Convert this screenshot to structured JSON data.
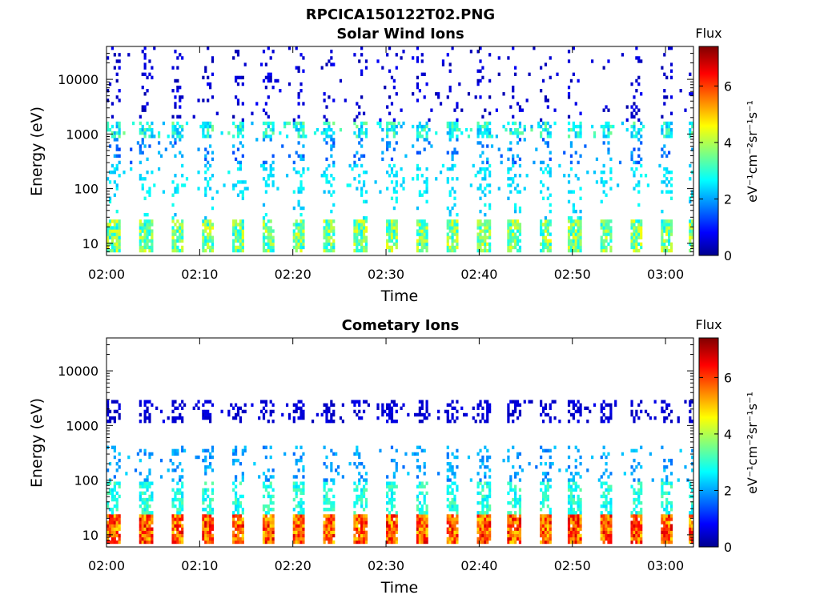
{
  "figure_title": "RPCICA150122T02.PNG",
  "chart_data": [
    {
      "type": "heatmap",
      "title": "Solar Wind Ions",
      "xlabel": "Time",
      "ylabel": "Energy (eV)",
      "x_ticks": [
        "02:00",
        "02:10",
        "02:20",
        "02:30",
        "02:40",
        "02:50",
        "03:00"
      ],
      "x_tick_minutes": [
        0,
        10,
        20,
        30,
        40,
        50,
        60
      ],
      "xlim_minutes": [
        0,
        63
      ],
      "y_scale": "log",
      "ylim": [
        6,
        40000
      ],
      "y_ticks": [
        10,
        100,
        1000,
        10000
      ],
      "y_tick_labels": [
        "10",
        "100",
        "1000",
        "10000"
      ],
      "colorbar": {
        "title": "Flux",
        "label": "eV⁻¹cm⁻²sr⁻¹s⁻¹",
        "range": [
          0,
          7.4
        ],
        "ticks": [
          0,
          2,
          4,
          6
        ],
        "colormap": "jet"
      },
      "sweep_start_minutes": [
        0.1,
        3.5,
        6.8,
        10.1,
        13.4,
        16.7,
        19.9,
        23.2,
        26.5,
        29.8,
        33.1,
        36.4,
        39.7,
        43.0,
        46.3,
        49.5,
        52.8,
        56.1,
        59.4,
        62.3
      ],
      "bands": [
        {
          "e_min": 7,
          "e_max": 28,
          "flux": 3.6,
          "density": 0.85,
          "jitter": 1.0
        },
        {
          "e_min": 28,
          "e_max": 80,
          "flux": 2.6,
          "density": 0.1,
          "jitter": 0.4
        },
        {
          "e_min": 80,
          "e_max": 300,
          "flux": 2.6,
          "density": 0.28,
          "jitter": 0.3
        },
        {
          "e_min": 300,
          "e_max": 900,
          "flux": 1.9,
          "density": 0.2,
          "jitter": 0.5
        },
        {
          "e_min": 900,
          "e_max": 1800,
          "flux": 2.9,
          "density": 0.65,
          "jitter": 0.8
        },
        {
          "e_min": 1800,
          "e_max": 40000,
          "flux": 0.6,
          "density": 0.12,
          "jitter": 0.3
        }
      ]
    },
    {
      "type": "heatmap",
      "title": "Cometary Ions",
      "xlabel": "Time",
      "ylabel": "Energy (eV)",
      "x_ticks": [
        "02:00",
        "02:10",
        "02:20",
        "02:30",
        "02:40",
        "02:50",
        "03:00"
      ],
      "x_tick_minutes": [
        0,
        10,
        20,
        30,
        40,
        50,
        60
      ],
      "xlim_minutes": [
        0,
        63
      ],
      "y_scale": "log",
      "ylim": [
        6,
        40000
      ],
      "y_ticks": [
        10,
        100,
        1000,
        10000
      ],
      "y_tick_labels": [
        "10",
        "100",
        "1000",
        "10000"
      ],
      "colorbar": {
        "title": "Flux",
        "label": "eV⁻¹cm⁻²sr⁻¹s⁻¹",
        "range": [
          0,
          7.4
        ],
        "ticks": [
          0,
          2,
          4,
          6
        ],
        "colormap": "jet"
      },
      "sweep_start_minutes": [
        0.1,
        3.5,
        6.8,
        10.1,
        13.4,
        16.7,
        19.9,
        23.2,
        26.5,
        29.8,
        33.1,
        36.4,
        39.7,
        43.0,
        46.3,
        49.5,
        52.8,
        56.1,
        59.4,
        62.3
      ],
      "bands": [
        {
          "e_min": 7,
          "e_max": 25,
          "flux": 5.8,
          "density": 0.95,
          "jitter": 1.0
        },
        {
          "e_min": 25,
          "e_max": 90,
          "flux": 3.0,
          "density": 0.55,
          "jitter": 0.5
        },
        {
          "e_min": 90,
          "e_max": 450,
          "flux": 2.1,
          "density": 0.25,
          "jitter": 0.4
        },
        {
          "e_min": 1100,
          "e_max": 2800,
          "flux": 0.6,
          "density": 0.45,
          "jitter": 0.2
        }
      ]
    }
  ]
}
